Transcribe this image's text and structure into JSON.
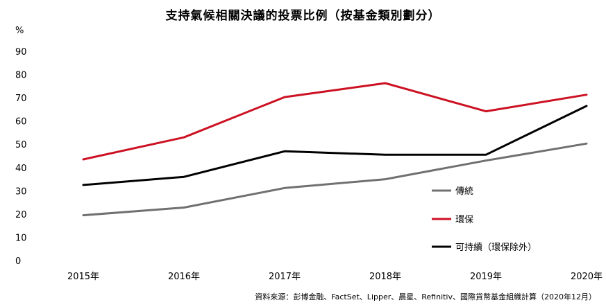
{
  "chart_data": {
    "type": "line",
    "title": "支持氣候相關決議的投票比例（按基金類別劃分）",
    "ylabel": "%",
    "xlabel": "",
    "ylim": [
      0,
      90
    ],
    "yticks": [
      0,
      10,
      20,
      30,
      40,
      50,
      60,
      70,
      80,
      90
    ],
    "categories": [
      "2015年",
      "2016年",
      "2017年",
      "2018年",
      "2019年",
      "2020年"
    ],
    "series": [
      {
        "name": "傳統",
        "color": "#707070",
        "values": [
          19.5,
          22.8,
          31.2,
          35,
          43,
          50.3
        ]
      },
      {
        "name": "環保",
        "color": "#cc1122",
        "values": [
          43.5,
          53,
          70.3,
          76.3,
          64.2,
          71.3
        ]
      },
      {
        "name": "可持續（環保除外）",
        "color": "#000000",
        "values": [
          32.5,
          36,
          47,
          45.5,
          45.5,
          66.5
        ]
      }
    ],
    "grid": false,
    "legend_position": "right"
  },
  "source": "資料來源：彭博金融、FactSet、Lipper、晨星、Refinitiv、國際貨幣基金組織計算（2020年12月）"
}
